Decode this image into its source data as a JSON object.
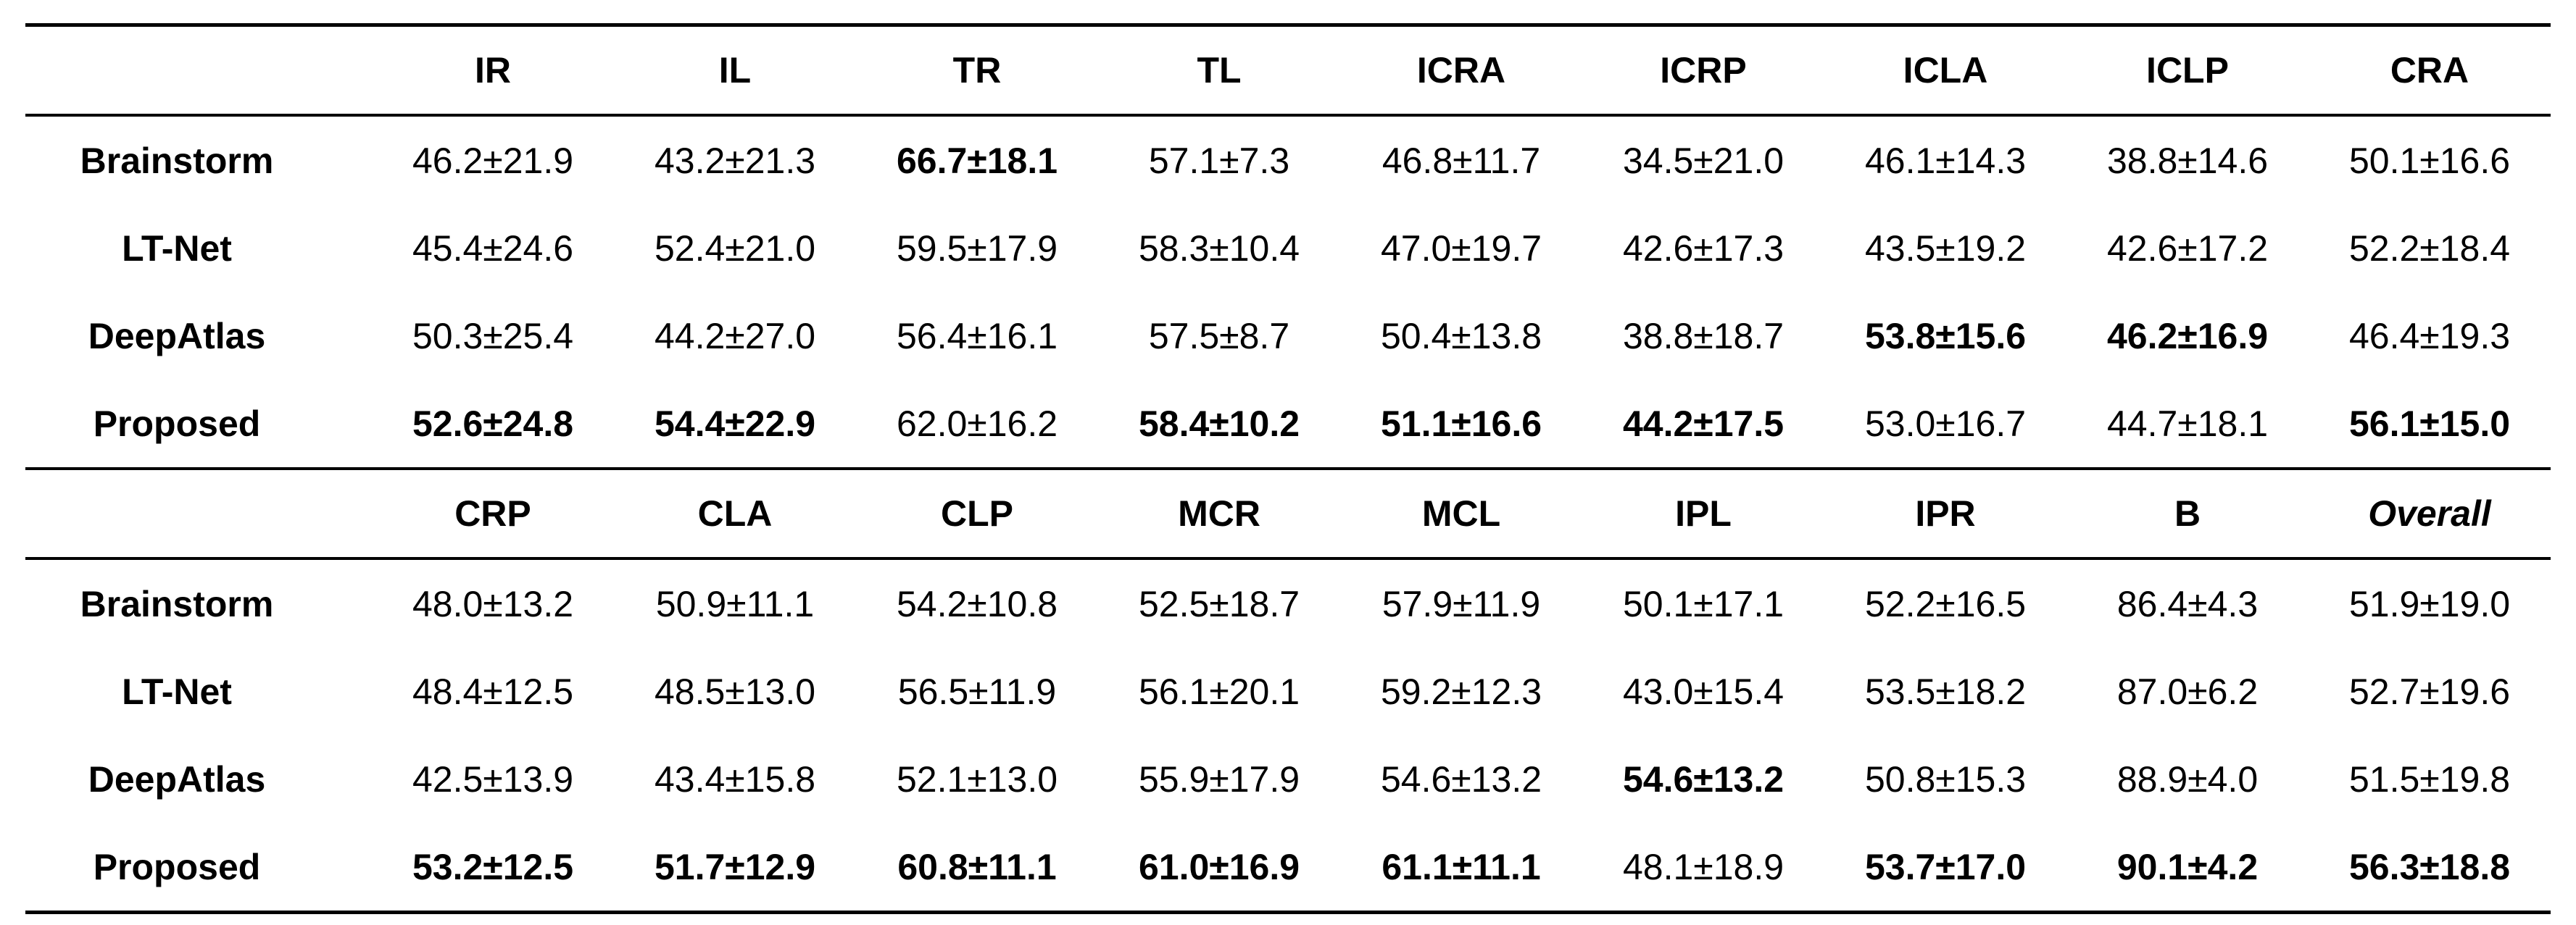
{
  "table": {
    "blocks": [
      {
        "columns": [
          "IR",
          "IL",
          "TR",
          "TL",
          "ICRA",
          "ICRP",
          "ICLA",
          "ICLP",
          "CRA"
        ],
        "italic_columns": [],
        "rows": [
          {
            "method": "Brainstorm",
            "values": [
              "46.2±21.9",
              "43.2±21.3",
              "66.7±18.1",
              "57.1±7.3",
              "46.8±11.7",
              "34.5±21.0",
              "46.1±14.3",
              "38.8±14.6",
              "50.1±16.6"
            ],
            "bold": [
              false,
              false,
              true,
              false,
              false,
              false,
              false,
              false,
              false
            ]
          },
          {
            "method": "LT-Net",
            "values": [
              "45.4±24.6",
              "52.4±21.0",
              "59.5±17.9",
              "58.3±10.4",
              "47.0±19.7",
              "42.6±17.3",
              "43.5±19.2",
              "42.6±17.2",
              "52.2±18.4"
            ],
            "bold": [
              false,
              false,
              false,
              false,
              false,
              false,
              false,
              false,
              false
            ]
          },
          {
            "method": "DeepAtlas",
            "values": [
              "50.3±25.4",
              "44.2±27.0",
              "56.4±16.1",
              "57.5±8.7",
              "50.4±13.8",
              "38.8±18.7",
              "53.8±15.6",
              "46.2±16.9",
              "46.4±19.3"
            ],
            "bold": [
              false,
              false,
              false,
              false,
              false,
              false,
              true,
              true,
              false
            ]
          },
          {
            "method": "Proposed",
            "values": [
              "52.6±24.8",
              "54.4±22.9",
              "62.0±16.2",
              "58.4±10.2",
              "51.1±16.6",
              "44.2±17.5",
              "53.0±16.7",
              "44.7±18.1",
              "56.1±15.0"
            ],
            "bold": [
              true,
              true,
              false,
              true,
              true,
              true,
              false,
              false,
              true
            ]
          }
        ]
      },
      {
        "columns": [
          "CRP",
          "CLA",
          "CLP",
          "MCR",
          "MCL",
          "IPL",
          "IPR",
          "B",
          "Overall"
        ],
        "italic_columns": [
          8
        ],
        "rows": [
          {
            "method": "Brainstorm",
            "values": [
              "48.0±13.2",
              "50.9±11.1",
              "54.2±10.8",
              "52.5±18.7",
              "57.9±11.9",
              "50.1±17.1",
              "52.2±16.5",
              "86.4±4.3",
              "51.9±19.0"
            ],
            "bold": [
              false,
              false,
              false,
              false,
              false,
              false,
              false,
              false,
              false
            ]
          },
          {
            "method": "LT-Net",
            "values": [
              "48.4±12.5",
              "48.5±13.0",
              "56.5±11.9",
              "56.1±20.1",
              "59.2±12.3",
              "43.0±15.4",
              "53.5±18.2",
              "87.0±6.2",
              "52.7±19.6"
            ],
            "bold": [
              false,
              false,
              false,
              false,
              false,
              false,
              false,
              false,
              false
            ]
          },
          {
            "method": "DeepAtlas",
            "values": [
              "42.5±13.9",
              "43.4±15.8",
              "52.1±13.0",
              "55.9±17.9",
              "54.6±13.2",
              "54.6±13.2",
              "50.8±15.3",
              "88.9±4.0",
              "51.5±19.8"
            ],
            "bold": [
              false,
              false,
              false,
              false,
              false,
              true,
              false,
              false,
              false
            ]
          },
          {
            "method": "Proposed",
            "values": [
              "53.2±12.5",
              "51.7±12.9",
              "60.8±11.1",
              "61.0±16.9",
              "61.1±11.1",
              "48.1±18.9",
              "53.7±17.0",
              "90.1±4.2",
              "56.3±18.8"
            ],
            "bold": [
              true,
              true,
              true,
              true,
              true,
              false,
              true,
              true,
              true
            ]
          }
        ]
      }
    ]
  }
}
